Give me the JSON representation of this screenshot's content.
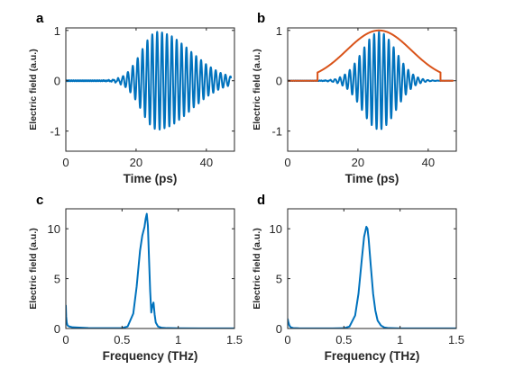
{
  "colors": {
    "signal": "#0072BD",
    "window": "#D95319",
    "axis": "#262626"
  },
  "chart_data": [
    {
      "id": "a",
      "panel_label": "a",
      "type": "line",
      "xlabel": "Time (ps)",
      "ylabel": "Electric  field (a.u.)",
      "xlim": [
        0,
        48
      ],
      "ylim": [
        -1.4,
        1.05
      ],
      "xticks": [
        0,
        20,
        40
      ],
      "yticks": [
        -1,
        0,
        1
      ],
      "grid": false,
      "series": [
        {
          "kind": "pulse",
          "t0": 26,
          "f": 0.72,
          "rise": 4.5,
          "fall": 9.5,
          "amp": 0.97,
          "t_start": 0,
          "t_end": 47,
          "baseline_noise": 0.01
        }
      ]
    },
    {
      "id": "b",
      "panel_label": "b",
      "type": "line",
      "xlabel": "Time (ps)",
      "ylabel": "Electric  field (a.u.)",
      "xlim": [
        0,
        48
      ],
      "ylim": [
        -1.4,
        1.05
      ],
      "xticks": [
        0,
        20,
        40
      ],
      "yticks": [
        -1,
        0,
        1
      ],
      "grid": false,
      "series": [
        {
          "kind": "pulse",
          "t0": 26,
          "f": 0.72,
          "rise": 4.8,
          "fall": 4.8,
          "amp": 0.97,
          "t_start": 0,
          "t_end": 47,
          "baseline_noise": 0.005
        },
        {
          "kind": "window",
          "t0": 26,
          "sigma": 9.2,
          "t_open": 8.5,
          "t_close": 43.5,
          "t_start": 0,
          "t_end": 47
        }
      ]
    },
    {
      "id": "c",
      "panel_label": "c",
      "type": "line",
      "xlabel": "Frequency (THz)",
      "ylabel": "Electric  field (a.u.)",
      "xlim": [
        0,
        1.5
      ],
      "ylim": [
        0,
        12
      ],
      "xticks": [
        0,
        0.5,
        1,
        1.5
      ],
      "yticks": [
        0,
        5,
        10
      ],
      "grid": false,
      "series": [
        {
          "kind": "points",
          "x": [
            0,
            0.003,
            0.008,
            0.015,
            0.03,
            0.06,
            0.1,
            0.2,
            0.3,
            0.4,
            0.5,
            0.55,
            0.6,
            0.63,
            0.66,
            0.68,
            0.7,
            0.71,
            0.72,
            0.73,
            0.74,
            0.75,
            0.76,
            0.77,
            0.78,
            0.79,
            0.8,
            0.82,
            0.85,
            0.9,
            1.0,
            1.2,
            1.5
          ],
          "y": [
            2.3,
            1.2,
            0.6,
            0.3,
            0.2,
            0.12,
            0.1,
            0.05,
            0.03,
            0.03,
            0.05,
            0.2,
            1.5,
            4.2,
            7.8,
            9.3,
            10.2,
            11.0,
            11.5,
            10.3,
            7.0,
            3.8,
            1.6,
            2.3,
            2.6,
            1.4,
            0.6,
            0.2,
            0.08,
            0.04,
            0.02,
            0.01,
            0.01
          ]
        }
      ]
    },
    {
      "id": "d",
      "panel_label": "d",
      "type": "line",
      "xlabel": "Frequency (THz)",
      "ylabel": "Electric  field (a.u.)",
      "xlim": [
        0,
        1.5
      ],
      "ylim": [
        0,
        12
      ],
      "xticks": [
        0,
        0.5,
        1,
        1.5
      ],
      "yticks": [
        0,
        5,
        10
      ],
      "grid": false,
      "series": [
        {
          "kind": "points",
          "x": [
            0,
            0.005,
            0.015,
            0.03,
            0.05,
            0.1,
            0.2,
            0.3,
            0.4,
            0.5,
            0.55,
            0.6,
            0.63,
            0.66,
            0.68,
            0.7,
            0.71,
            0.72,
            0.74,
            0.76,
            0.78,
            0.8,
            0.83,
            0.86,
            0.9,
            1.0,
            1.2,
            1.5
          ],
          "y": [
            0.95,
            0.7,
            0.3,
            0.1,
            0.05,
            0.02,
            0.01,
            0.01,
            0.01,
            0.03,
            0.2,
            1.3,
            3.5,
            7.0,
            9.2,
            10.2,
            10.0,
            9.0,
            6.2,
            3.5,
            1.8,
            0.8,
            0.3,
            0.1,
            0.04,
            0.01,
            0.01,
            0.01
          ]
        }
      ]
    }
  ]
}
